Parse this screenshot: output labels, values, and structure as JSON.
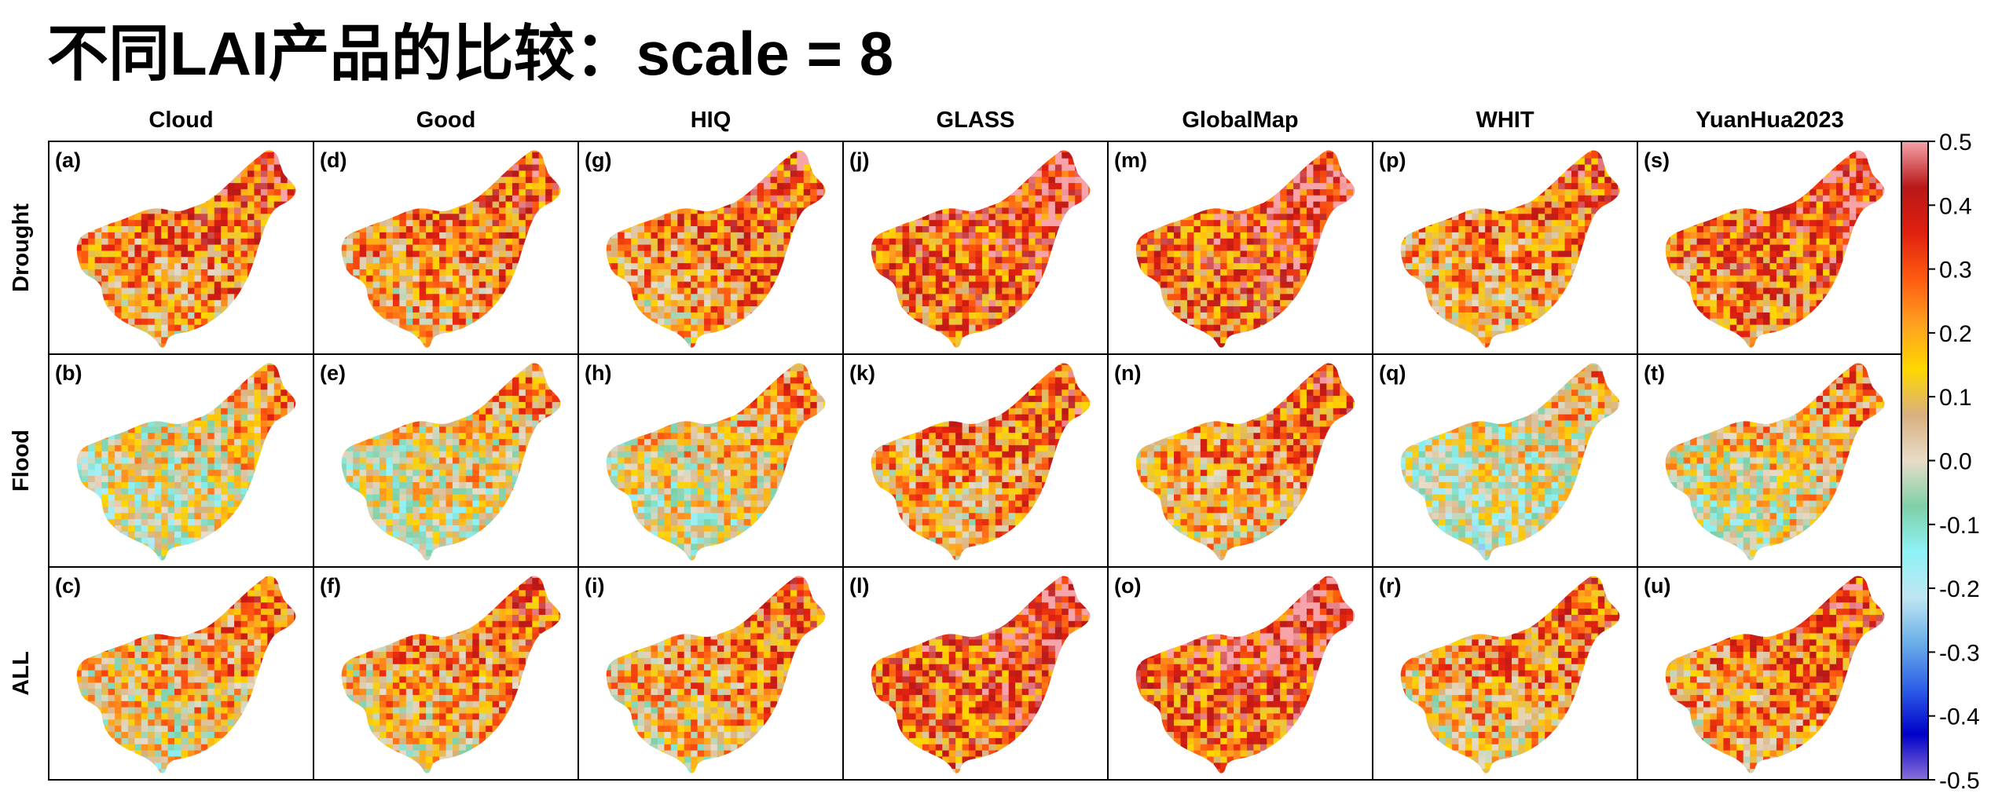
{
  "title": "不同LAI产品的比较：scale = 8",
  "chart_data": {
    "type": "heatmap",
    "title": "不同LAI产品的比较：scale = 8",
    "columns": [
      "Cloud",
      "Good",
      "HIQ",
      "GLASS",
      "GlobalMap",
      "WHIT",
      "YuanHua2023"
    ],
    "rows": [
      "Drought",
      "Flood",
      "ALL"
    ],
    "panel_labels": [
      [
        "(a)",
        "(d)",
        "(g)",
        "(j)",
        "(m)",
        "(p)",
        "(s)"
      ],
      [
        "(b)",
        "(e)",
        "(h)",
        "(k)",
        "(n)",
        "(q)",
        "(t)"
      ],
      [
        "(c)",
        "(f)",
        "(i)",
        "(l)",
        "(o)",
        "(r)",
        "(u)"
      ]
    ],
    "panel_mean_values": [
      [
        0.2,
        0.19,
        0.2,
        0.3,
        0.29,
        0.18,
        0.26
      ],
      [
        0.05,
        0.06,
        0.08,
        0.18,
        0.17,
        0.02,
        0.08
      ],
      [
        0.12,
        0.16,
        0.16,
        0.29,
        0.31,
        0.16,
        0.2
      ]
    ],
    "colorbar": {
      "range": [
        -0.5,
        0.5
      ],
      "ticks": [
        0.5,
        0.4,
        0.3,
        0.2,
        0.1,
        0.0,
        -0.1,
        -0.2,
        -0.3,
        -0.4,
        -0.5
      ],
      "tick_labels": [
        "0.5",
        "0.4",
        "0.3",
        "0.2",
        "0.1",
        "0.0",
        "-0.1",
        "-0.2",
        "-0.3",
        "-0.4",
        "-0.5"
      ],
      "colors": [
        "#8a6fd8",
        "#0000c8",
        "#2e5fe8",
        "#6aaee8",
        "#bfe6f2",
        "#8ef2f6",
        "#7fd0a8",
        "#e8dcc8",
        "#d8b07e",
        "#ffd700",
        "#ffa020",
        "#ff5a10",
        "#e02010",
        "#b81818",
        "#f6a4aa"
      ]
    }
  }
}
